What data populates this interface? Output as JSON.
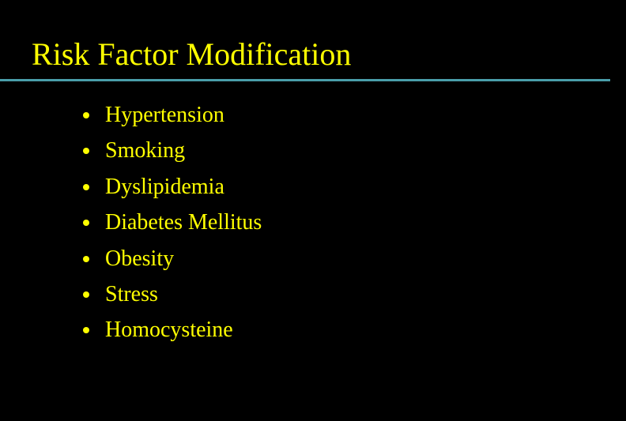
{
  "slide": {
    "title": "Risk Factor Modification",
    "background_color": "#000000",
    "text_color": "#ffff00",
    "underline_color": "#4a9eaa",
    "title_fontsize": 40,
    "bullet_fontsize": 28,
    "bullets": [
      "Hypertension",
      "Smoking",
      "Dyslipidemia",
      "Diabetes Mellitus",
      "Obesity",
      "Stress",
      "Homocysteine"
    ]
  }
}
